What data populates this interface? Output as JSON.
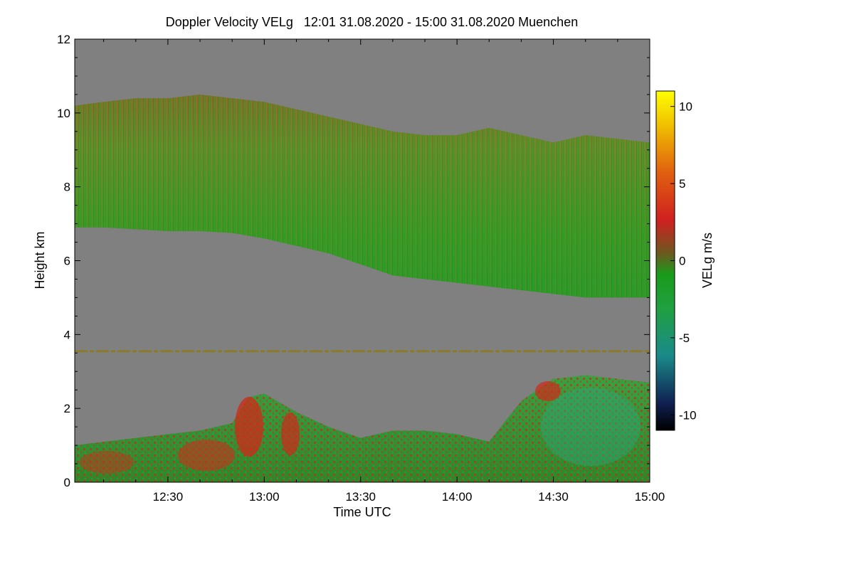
{
  "chart_data": {
    "type": "heatmap",
    "title": "Doppler Velocity VELg   12:01 31.08.2020 - 15:00 31.08.2020 Muenchen",
    "xlabel": "Time UTC",
    "ylabel": "Height km",
    "x_ticks": [
      "12:30",
      "13:00",
      "13:30",
      "14:00",
      "14:30",
      "15:00"
    ],
    "x_tick_minutes": [
      30,
      60,
      90,
      120,
      150,
      180
    ],
    "xlim_minutes": [
      1,
      180
    ],
    "y_ticks": [
      0,
      2,
      4,
      6,
      8,
      10,
      12
    ],
    "ylim": [
      0,
      12
    ],
    "colorbar": {
      "label": "VELg m/s",
      "ticks": [
        10,
        5,
        0,
        -5,
        -10
      ],
      "range": [
        -11,
        11
      ]
    },
    "colors": {
      "background": "#808080",
      "cirrus": "#6e8a2e",
      "green": "#1f9a1f",
      "red": "#d0281a",
      "teal": "#2aa87a",
      "olive": "#8a7a2a"
    },
    "layers": {
      "cirrus_top_km": [
        [
          1,
          10.2
        ],
        [
          10,
          10.3
        ],
        [
          20,
          10.4
        ],
        [
          30,
          10.4
        ],
        [
          40,
          10.5
        ],
        [
          50,
          10.4
        ],
        [
          60,
          10.3
        ],
        [
          70,
          10.1
        ],
        [
          80,
          9.9
        ],
        [
          90,
          9.7
        ],
        [
          100,
          9.5
        ],
        [
          110,
          9.4
        ],
        [
          120,
          9.4
        ],
        [
          130,
          9.6
        ],
        [
          140,
          9.4
        ],
        [
          150,
          9.2
        ],
        [
          160,
          9.4
        ],
        [
          170,
          9.3
        ],
        [
          180,
          9.2
        ]
      ],
      "cirrus_base_km": [
        [
          1,
          6.9
        ],
        [
          10,
          6.9
        ],
        [
          20,
          6.85
        ],
        [
          30,
          6.8
        ],
        [
          40,
          6.8
        ],
        [
          50,
          6.75
        ],
        [
          60,
          6.6
        ],
        [
          70,
          6.4
        ],
        [
          80,
          6.2
        ],
        [
          90,
          5.9
        ],
        [
          100,
          5.6
        ],
        [
          110,
          5.5
        ],
        [
          120,
          5.4
        ],
        [
          130,
          5.3
        ],
        [
          140,
          5.2
        ],
        [
          150,
          5.1
        ],
        [
          160,
          5.0
        ],
        [
          170,
          5.0
        ],
        [
          180,
          5.0
        ]
      ],
      "thin_line_km": 3.55,
      "lower_layer_top_km": [
        [
          1,
          1.0
        ],
        [
          20,
          1.2
        ],
        [
          40,
          1.4
        ],
        [
          50,
          1.6
        ],
        [
          55,
          2.3
        ],
        [
          60,
          2.4
        ],
        [
          70,
          1.9
        ],
        [
          80,
          1.5
        ],
        [
          90,
          1.2
        ],
        [
          100,
          1.4
        ],
        [
          110,
          1.4
        ],
        [
          120,
          1.3
        ],
        [
          130,
          1.1
        ],
        [
          140,
          2.2
        ],
        [
          150,
          2.8
        ],
        [
          160,
          2.9
        ],
        [
          170,
          2.8
        ],
        [
          180,
          2.7
        ]
      ]
    }
  }
}
